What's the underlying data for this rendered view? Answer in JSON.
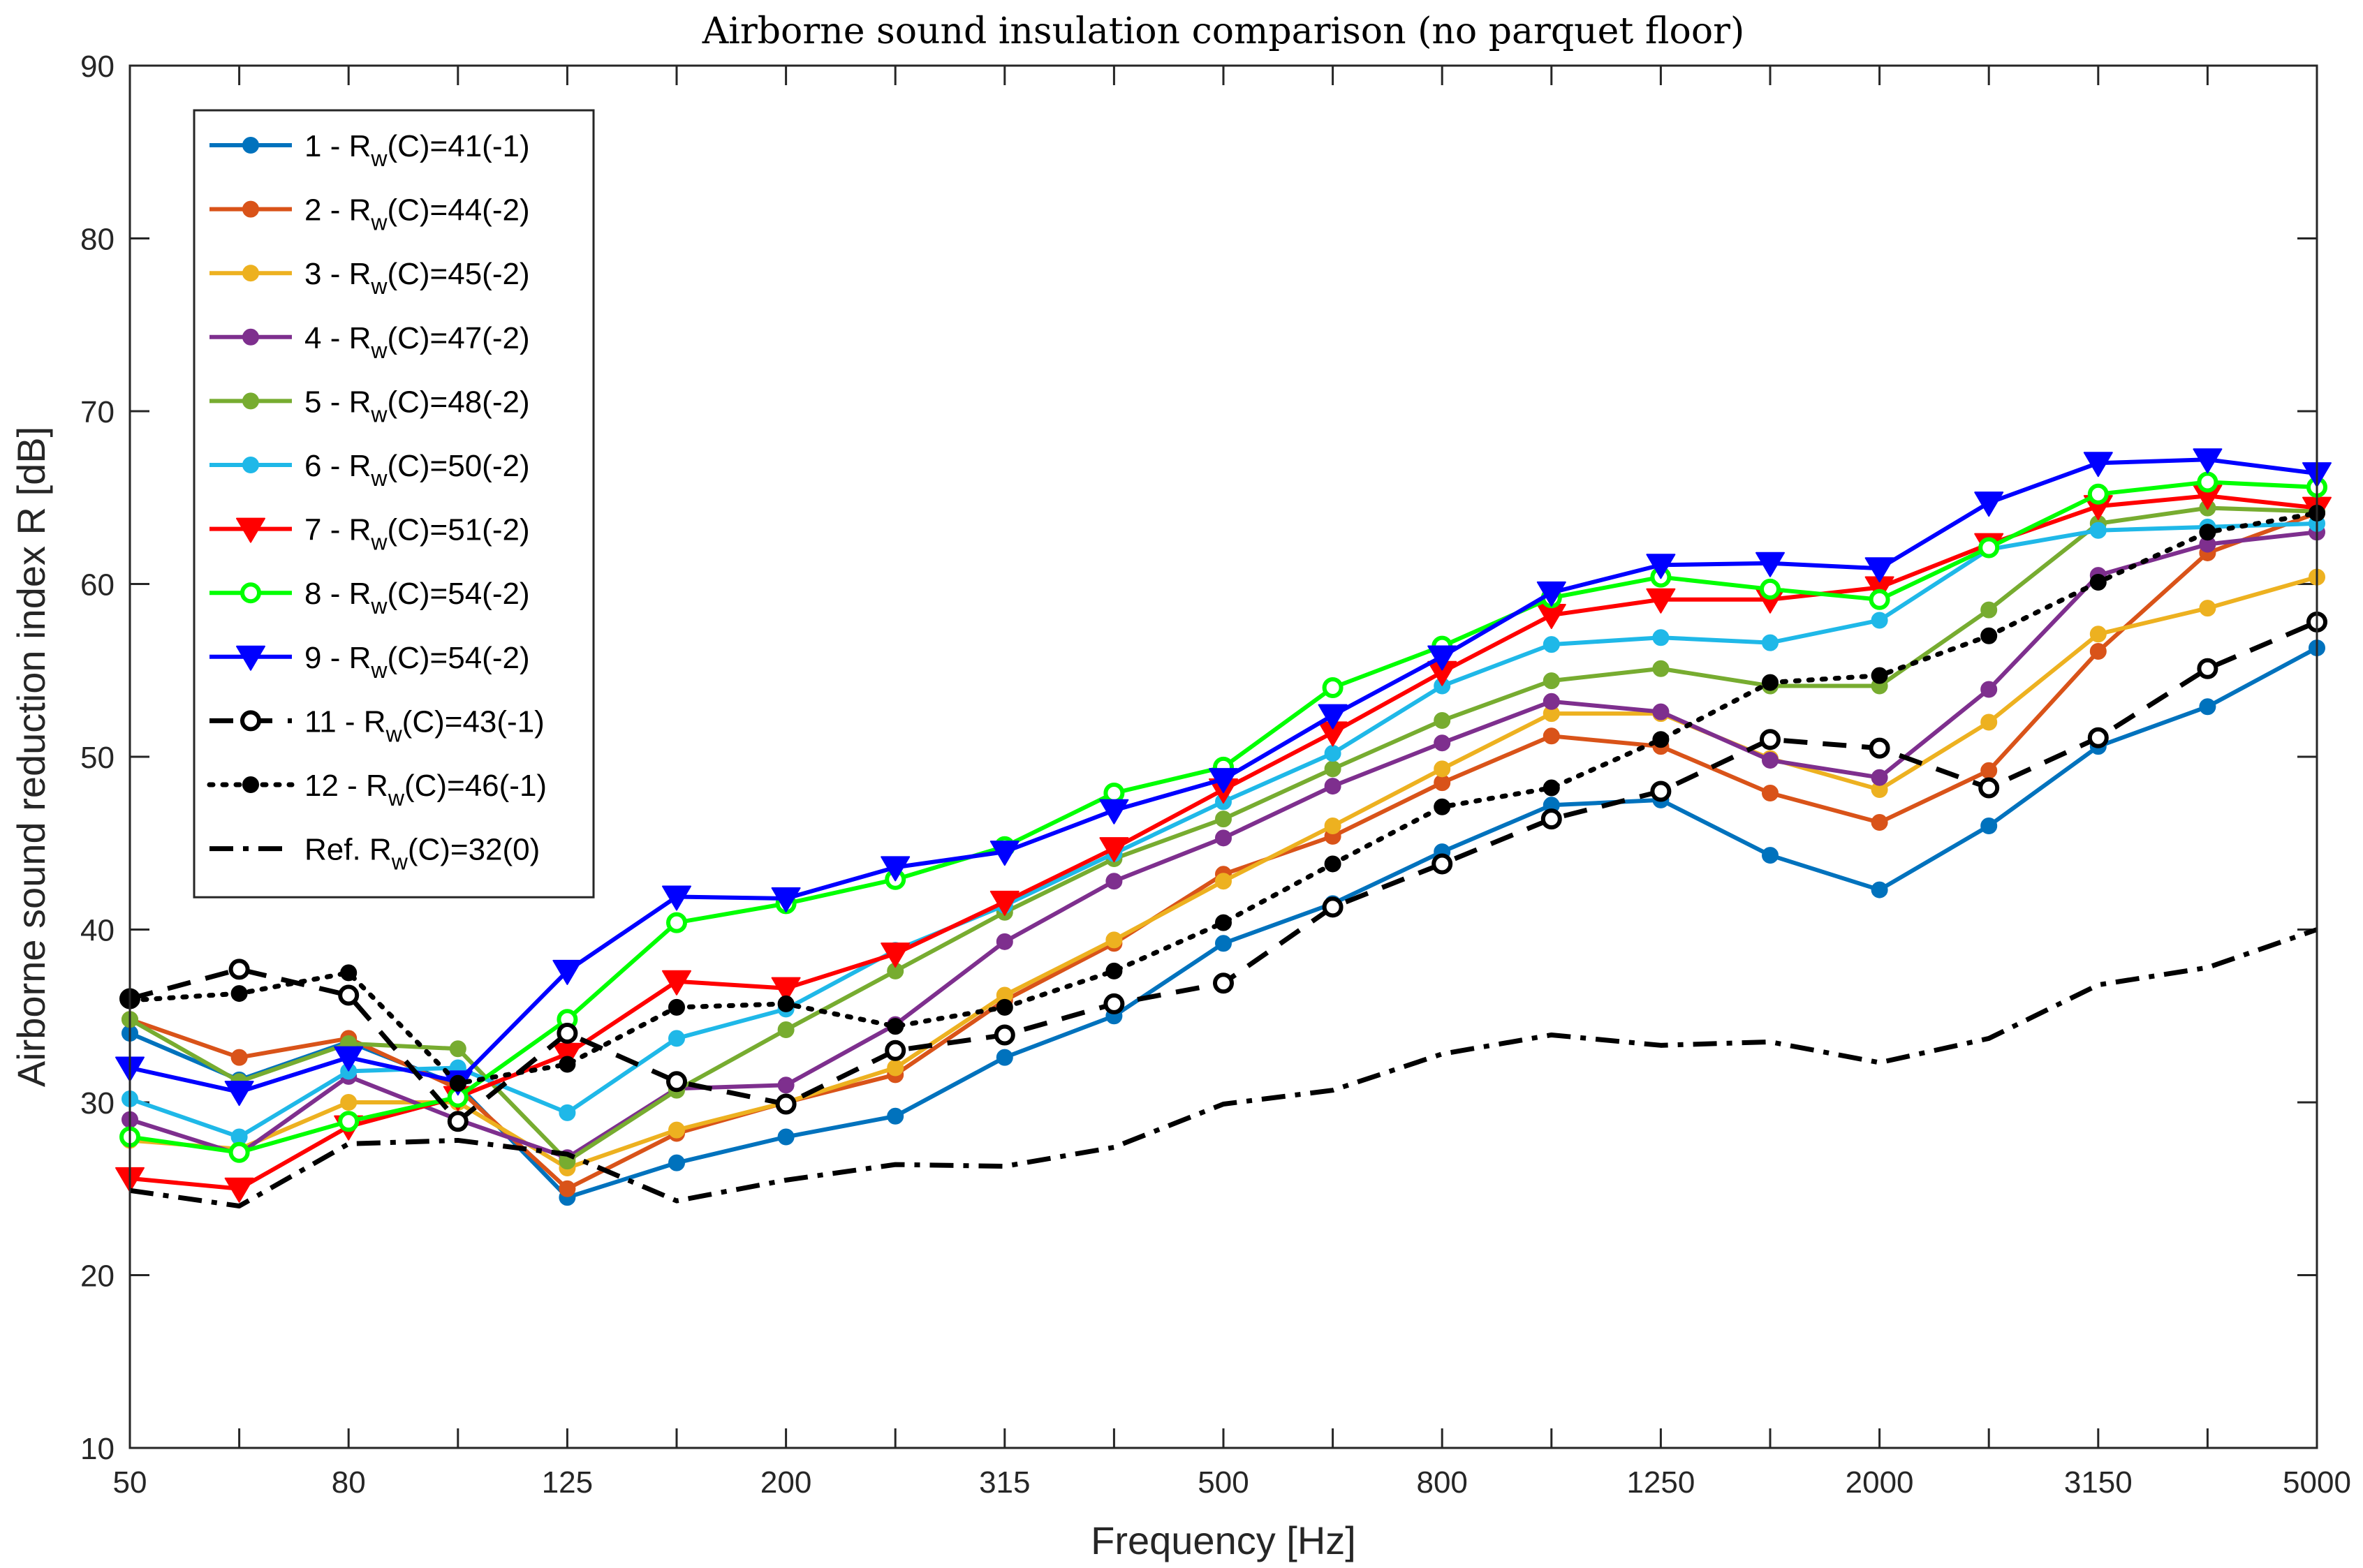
{
  "chart_data": {
    "type": "line",
    "title": "Airborne sound insulation comparison (no parquet floor)",
    "xlabel": "Frequency [Hz]",
    "ylabel": "Airborne sound reduction index R [dB]",
    "x": [
      50,
      63,
      80,
      100,
      125,
      160,
      200,
      250,
      315,
      400,
      500,
      630,
      800,
      1000,
      1250,
      1600,
      2000,
      2500,
      3150,
      4000,
      5000
    ],
    "x_tick_labels": [
      "50",
      "80",
      "125",
      "200",
      "315",
      "500",
      "800",
      "1250",
      "2000",
      "3150",
      "5000"
    ],
    "y_ticks": [
      "10",
      "20",
      "30",
      "40",
      "50",
      "60",
      "70",
      "80",
      "90"
    ],
    "ylim": [
      10,
      90
    ],
    "grid": false,
    "legend_position": "top-left",
    "series": [
      {
        "name": "1 - Rw(C)=41(-1)",
        "label_main": "1 - R",
        "label_sub": "w",
        "label_rest": "(C)=41(-1)",
        "color": "#0072BD",
        "style": "solid",
        "marker": "dot",
        "values": [
          34.0,
          31.3,
          33.5,
          31.0,
          24.5,
          26.5,
          28.0,
          29.2,
          32.6,
          35.0,
          39.2,
          41.5,
          44.5,
          47.2,
          47.5,
          44.3,
          42.3,
          46.0,
          50.6,
          52.9,
          56.3
        ]
      },
      {
        "name": "2 - Rw(C)=44(-2)",
        "label_main": "2 - R",
        "label_sub": "w",
        "label_rest": "(C)=44(-2)",
        "color": "#D95319",
        "style": "solid",
        "marker": "dot",
        "values": [
          34.8,
          32.6,
          33.7,
          30.8,
          25.0,
          28.2,
          30.0,
          31.6,
          35.9,
          39.2,
          43.2,
          45.4,
          48.5,
          51.2,
          50.6,
          47.9,
          46.2,
          49.2,
          56.1,
          61.8,
          64.1
        ]
      },
      {
        "name": "3 - Rw(C)=45(-2)",
        "label_main": "3 - R",
        "label_sub": "w",
        "label_rest": "(C)=45(-2)",
        "color": "#EDB120",
        "style": "solid",
        "marker": "dot",
        "values": [
          27.8,
          27.3,
          30.0,
          30.0,
          26.2,
          28.4,
          30.0,
          32.0,
          36.2,
          39.4,
          42.8,
          46.0,
          49.3,
          52.5,
          52.5,
          49.9,
          48.1,
          52.0,
          57.1,
          58.6,
          60.4
        ]
      },
      {
        "name": "4 - Rw(C)=47(-2)",
        "label_main": "4 - R",
        "label_sub": "w",
        "label_rest": "(C)=47(-2)",
        "color": "#7E2F8E",
        "style": "solid",
        "marker": "dot",
        "values": [
          29.0,
          27.0,
          31.5,
          29.0,
          26.8,
          30.8,
          31.0,
          34.5,
          39.3,
          42.8,
          45.3,
          48.3,
          50.8,
          53.2,
          52.6,
          49.8,
          48.8,
          53.9,
          60.5,
          62.3,
          63.0
        ]
      },
      {
        "name": "5 - Rw(C)=48(-2)",
        "label_main": "5 - R",
        "label_sub": "w",
        "label_rest": "(C)=48(-2)",
        "color": "#77AC30",
        "style": "solid",
        "marker": "dot",
        "values": [
          34.8,
          31.2,
          33.4,
          33.1,
          26.6,
          30.7,
          34.2,
          37.6,
          41.0,
          44.1,
          46.4,
          49.3,
          52.1,
          54.4,
          55.1,
          54.1,
          54.1,
          58.5,
          63.5,
          64.4,
          64.2
        ]
      },
      {
        "name": "6 - Rw(C)=50(-2)",
        "label_main": "6 - R",
        "label_sub": "w",
        "label_rest": "(C)=50(-2)",
        "color": "#1FB8E8",
        "style": "solid",
        "marker": "dot",
        "values": [
          30.2,
          28.0,
          31.8,
          32.0,
          29.4,
          33.7,
          35.4,
          38.8,
          41.4,
          44.4,
          47.4,
          50.2,
          54.1,
          56.5,
          56.9,
          56.6,
          57.9,
          62.0,
          63.1,
          63.3,
          63.5
        ]
      },
      {
        "name": "7 - Rw(C)=51(-2)",
        "label_main": "7 - R",
        "label_sub": "w",
        "label_rest": "(C)=51(-2)",
        "color": "#FF0000",
        "style": "solid",
        "marker": "triangle-down-filled",
        "values": [
          25.6,
          25.0,
          28.6,
          30.3,
          32.8,
          37.0,
          36.6,
          38.6,
          41.6,
          44.7,
          48.1,
          51.4,
          54.9,
          58.2,
          59.1,
          59.1,
          59.8,
          62.3,
          64.5,
          65.1,
          64.4
        ]
      },
      {
        "name": "8 - Rw(C)=54(-2)",
        "label_main": "8 - R",
        "label_sub": "w",
        "label_rest": "(C)=54(-2)",
        "color": "#00FF00",
        "style": "solid",
        "marker": "circle-open",
        "values": [
          28.0,
          27.1,
          28.9,
          30.3,
          34.8,
          40.4,
          41.5,
          42.9,
          44.8,
          47.9,
          49.4,
          54.0,
          56.4,
          59.2,
          60.4,
          59.7,
          59.1,
          62.1,
          65.2,
          65.9,
          65.6
        ]
      },
      {
        "name": "9 - Rw(C)=54(-2)",
        "label_main": "9 - R",
        "label_sub": "w",
        "label_rest": "(C)=54(-2)",
        "color": "#0000FF",
        "style": "solid",
        "marker": "triangle-down-filled",
        "values": [
          32.0,
          30.6,
          32.6,
          31.2,
          37.6,
          41.9,
          41.8,
          43.6,
          44.5,
          46.9,
          48.7,
          52.4,
          55.8,
          59.5,
          61.1,
          61.2,
          60.9,
          64.7,
          67.0,
          67.2,
          66.4
        ]
      },
      {
        "name": "11 - Rw(C)=43(-1)",
        "label_main": "11 - R",
        "label_sub": "w",
        "label_rest": "(C)=43(-1)",
        "color": "#000000",
        "style": "dashed",
        "marker": "circle-open",
        "values": [
          36.0,
          37.7,
          36.2,
          28.9,
          34.0,
          31.2,
          29.9,
          33.0,
          33.9,
          35.7,
          36.9,
          41.3,
          43.8,
          46.4,
          48.0,
          51.0,
          50.5,
          48.2,
          51.1,
          55.1,
          57.8
        ]
      },
      {
        "name": "12 - Rw(C)=46(-1)",
        "label_main": "12 - R",
        "label_sub": "w",
        "label_rest": "(C)=46(-1)",
        "color": "#000000",
        "style": "dotted",
        "marker": "dot",
        "values": [
          35.9,
          36.3,
          37.5,
          31.1,
          32.2,
          35.5,
          35.7,
          34.4,
          35.5,
          37.6,
          40.4,
          43.8,
          47.1,
          48.2,
          51.0,
          54.3,
          54.7,
          57.0,
          60.1,
          63.0,
          64.1
        ]
      },
      {
        "name": "Ref. Rw(C)=32(0)",
        "label_main": "Ref. R",
        "label_sub": "w",
        "label_rest": "(C)=32(0)",
        "color": "#000000",
        "style": "dashdot",
        "marker": "none",
        "values": [
          24.9,
          24.0,
          27.6,
          27.8,
          27.0,
          24.3,
          25.5,
          26.4,
          26.3,
          27.4,
          29.9,
          30.7,
          32.8,
          33.9,
          33.3,
          33.5,
          32.3,
          33.7,
          36.8,
          37.8,
          40.0
        ]
      }
    ]
  }
}
